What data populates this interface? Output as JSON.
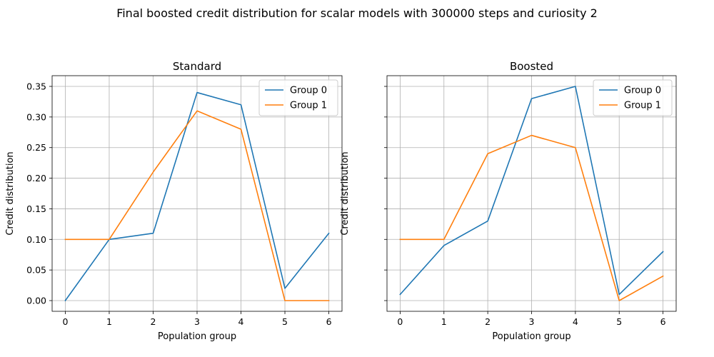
{
  "figure": {
    "title": "Final boosted credit distribution for scalar models with 300000 steps and curiosity 2"
  },
  "chart_data": [
    {
      "type": "line",
      "title": "Standard",
      "xlabel": "Population group",
      "ylabel": "Credit distribution",
      "x": [
        0,
        1,
        2,
        3,
        4,
        5,
        6
      ],
      "xlim": [
        -0.3,
        6.3
      ],
      "ylim": [
        -0.0175,
        0.3675
      ],
      "xticks": [
        "0",
        "1",
        "2",
        "3",
        "4",
        "5",
        "6"
      ],
      "yticks": [
        "0.00",
        "0.05",
        "0.10",
        "0.15",
        "0.20",
        "0.25",
        "0.30",
        "0.35"
      ],
      "grid": true,
      "legend": "top-right",
      "series": [
        {
          "name": "Group 0",
          "color": "#1f77b4",
          "values": [
            0.0,
            0.1,
            0.11,
            0.34,
            0.32,
            0.02,
            0.11
          ]
        },
        {
          "name": "Group 1",
          "color": "#ff7f0e",
          "values": [
            0.1,
            0.1,
            0.21,
            0.31,
            0.28,
            0.0,
            0.0
          ]
        }
      ]
    },
    {
      "type": "line",
      "title": "Boosted",
      "xlabel": "Population group",
      "ylabel": "Credit distribution",
      "x": [
        0,
        1,
        2,
        3,
        4,
        5,
        6
      ],
      "xlim": [
        -0.3,
        6.3
      ],
      "ylim": [
        -0.0175,
        0.3675
      ],
      "xticks": [
        "0",
        "1",
        "2",
        "3",
        "4",
        "5",
        "6"
      ],
      "yticks": [
        "0.00",
        "0.05",
        "0.10",
        "0.15",
        "0.20",
        "0.25",
        "0.30",
        "0.35"
      ],
      "grid": true,
      "legend": "top-right",
      "series": [
        {
          "name": "Group 0",
          "color": "#1f77b4",
          "values": [
            0.01,
            0.09,
            0.13,
            0.33,
            0.35,
            0.01,
            0.08
          ]
        },
        {
          "name": "Group 1",
          "color": "#ff7f0e",
          "values": [
            0.1,
            0.1,
            0.24,
            0.27,
            0.25,
            0.0,
            0.04
          ]
        }
      ]
    }
  ]
}
